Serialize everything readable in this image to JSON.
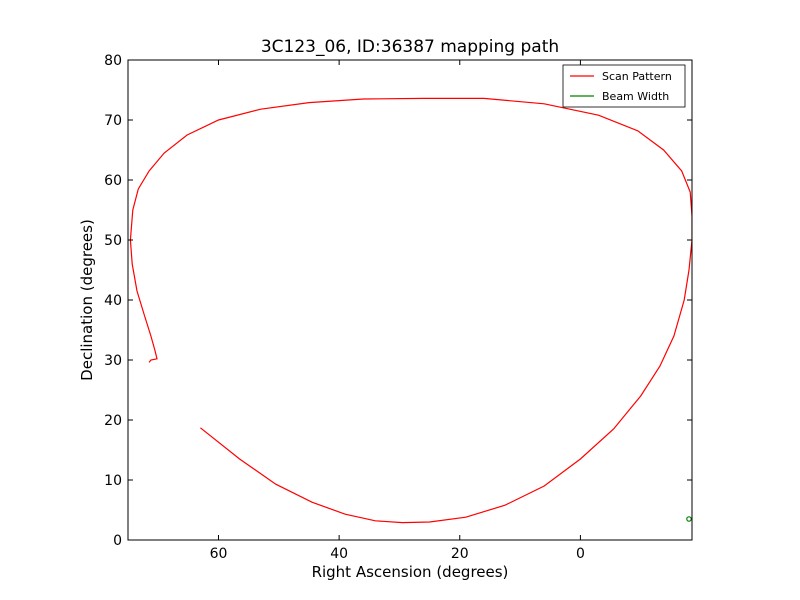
{
  "chart_data": {
    "type": "line",
    "title": "3C123_06, ID:36387 mapping path",
    "xlabel": "Right Ascension (degrees)",
    "ylabel": "Declination (degrees)",
    "x_inverted": true,
    "xlim": [
      75,
      -18.5
    ],
    "ylim": [
      0,
      80
    ],
    "x_ticks": [
      60,
      40,
      20,
      0
    ],
    "x_tick_labels": [
      "60",
      "40",
      "20",
      "0"
    ],
    "y_ticks": [
      0,
      10,
      20,
      30,
      40,
      50,
      60,
      70,
      80
    ],
    "y_tick_labels": [
      "0",
      "10",
      "20",
      "30",
      "40",
      "50",
      "60",
      "70",
      "80"
    ],
    "grid": false,
    "legend_position": "top-right",
    "series": [
      {
        "name": "Scan Pattern",
        "color": "#ff0000",
        "x": [
          71.5,
          71.2,
          70.2,
          70.5,
          71.2,
          72.3,
          73.5,
          74.3,
          74.6,
          74.2,
          73.3,
          71.5,
          69.0,
          65.2,
          60.0,
          53.0,
          45.0,
          36.0,
          26.0,
          16.0,
          6.0,
          -3.0,
          -9.5,
          -13.8,
          -16.8,
          -18.2,
          -18.5,
          -18.5,
          -18.0,
          -17.2,
          -15.5,
          -13.2,
          -10.0,
          -5.5,
          0.0,
          6.0,
          12.5,
          19.0,
          25.0,
          29.5,
          34.0,
          39.0,
          44.5,
          50.5,
          56.5,
          63.0
        ],
        "y": [
          29.6,
          30.0,
          30.2,
          31.5,
          34.0,
          37.5,
          41.5,
          46.0,
          50.0,
          55.0,
          58.5,
          61.5,
          64.5,
          67.5,
          70.0,
          71.8,
          72.9,
          73.5,
          73.6,
          73.6,
          72.7,
          70.8,
          68.2,
          65.0,
          61.5,
          58.0,
          54.0,
          50.0,
          45.0,
          40.0,
          34.0,
          29.0,
          24.0,
          18.5,
          13.5,
          9.0,
          5.8,
          3.8,
          3.0,
          2.9,
          3.2,
          4.3,
          6.3,
          9.3,
          13.5,
          18.7
        ]
      },
      {
        "name": "Beam Width",
        "color": "#008000",
        "center": [
          -18.0,
          3.5
        ],
        "radius": 0.35
      }
    ]
  }
}
